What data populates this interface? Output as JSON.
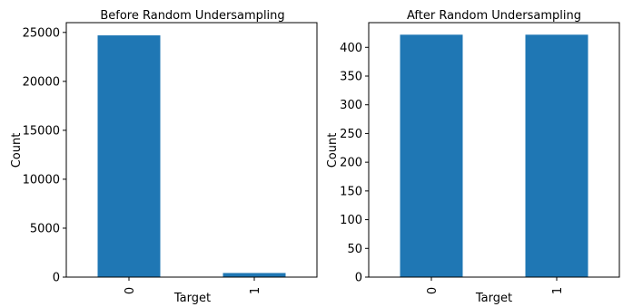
{
  "chart_data": [
    {
      "type": "bar",
      "title": "Before Random Undersampling",
      "xlabel": "Target",
      "ylabel": "Count",
      "categories": [
        "0",
        "1"
      ],
      "values": [
        24700,
        420
      ],
      "ylim": [
        0,
        26000
      ],
      "yticks": [
        0,
        5000,
        10000,
        15000,
        20000,
        25000
      ],
      "bar_color": "#1f77b4",
      "grid": false,
      "legend": "none"
    },
    {
      "type": "bar",
      "title": "After Random Undersampling",
      "xlabel": "Target",
      "ylabel": "Count",
      "categories": [
        "0",
        "1"
      ],
      "values": [
        422,
        422
      ],
      "ylim": [
        0,
        443
      ],
      "yticks": [
        0,
        50,
        100,
        150,
        200,
        250,
        300,
        350,
        400
      ],
      "bar_color": "#1f77b4",
      "grid": false,
      "legend": "none"
    }
  ]
}
